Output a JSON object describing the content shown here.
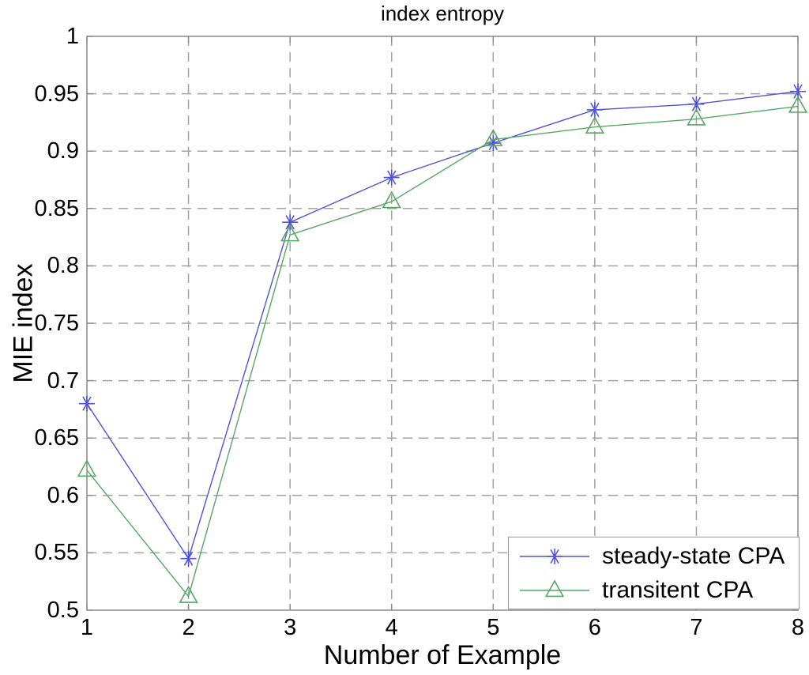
{
  "figure": {
    "background": "#ffffff",
    "axis_color": "#8a8a8a",
    "grid_color": "#a3a3a3",
    "legend_border_color": "#999999",
    "text_color": "#000000"
  },
  "chart_data": {
    "type": "line",
    "title": "index entropy",
    "xlabel": "Number of Example",
    "ylabel": "MIE index",
    "xlim": [
      1,
      8
    ],
    "ylim": [
      0.5,
      1.0
    ],
    "grid": "dashed",
    "legend_position": "lower-right",
    "x_ticks": [
      {
        "v": 1,
        "label": "1"
      },
      {
        "v": 2,
        "label": "2"
      },
      {
        "v": 3,
        "label": "3"
      },
      {
        "v": 4,
        "label": "4"
      },
      {
        "v": 5,
        "label": "5"
      },
      {
        "v": 6,
        "label": "6"
      },
      {
        "v": 7,
        "label": "7"
      },
      {
        "v": 8,
        "label": "8"
      }
    ],
    "y_ticks": [
      {
        "v": 0.5,
        "label": "0.5"
      },
      {
        "v": 0.55,
        "label": "0.55"
      },
      {
        "v": 0.6,
        "label": "0.6"
      },
      {
        "v": 0.65,
        "label": "0.65"
      },
      {
        "v": 0.7,
        "label": "0.7"
      },
      {
        "v": 0.75,
        "label": "0.75"
      },
      {
        "v": 0.8,
        "label": "0.8"
      },
      {
        "v": 0.85,
        "label": "0.85"
      },
      {
        "v": 0.9,
        "label": "0.9"
      },
      {
        "v": 0.95,
        "label": "0.95"
      },
      {
        "v": 1.0,
        "label": "1"
      }
    ],
    "x": [
      1,
      2,
      3,
      4,
      5,
      6,
      7,
      8
    ],
    "series": [
      {
        "name": "steady-state CPA",
        "color": "#5152d8",
        "marker": "asterisk",
        "values": [
          0.68,
          0.545,
          0.838,
          0.877,
          0.907,
          0.936,
          0.941,
          0.952
        ]
      },
      {
        "name": "transitent CPA",
        "color": "#57a763",
        "marker": "triangle-up",
        "values": [
          0.622,
          0.512,
          0.827,
          0.856,
          0.91,
          0.921,
          0.928,
          0.939
        ]
      }
    ]
  }
}
